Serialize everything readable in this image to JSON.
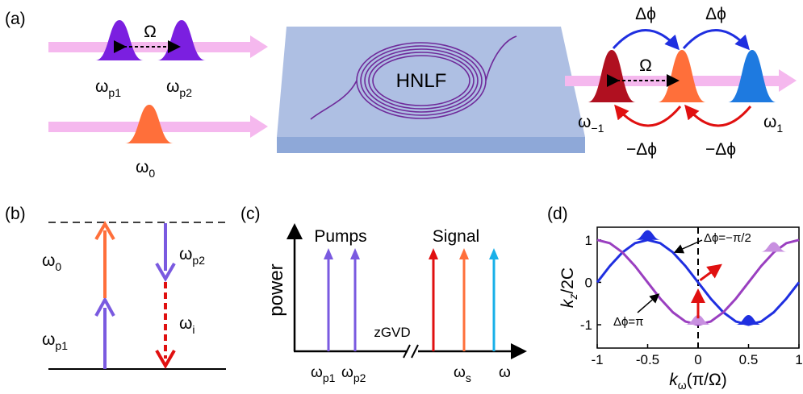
{
  "panel_labels": [
    "(a)",
    "(b)",
    "(c)",
    "(d)"
  ],
  "a": {
    "pump_spacing": "Ω",
    "pump1": {
      "symbol": "ω",
      "sub": "p1"
    },
    "pump2": {
      "symbol": "ω",
      "sub": "p2"
    },
    "signal": {
      "symbol": "ω",
      "sub": "0"
    },
    "chip": "HNLF",
    "mode_spacing": "Ω",
    "phase_up": [
      "Δϕ",
      "Δϕ"
    ],
    "phase_down": [
      "−Δϕ",
      "−Δϕ"
    ],
    "mode_minus": {
      "symbol": "ω",
      "sub": "−1"
    },
    "mode_plus": {
      "symbol": "ω",
      "sub": "1"
    }
  },
  "b": {
    "w0": {
      "symbol": "ω",
      "sub": "0"
    },
    "wp1": {
      "symbol": "ω",
      "sub": "p1"
    },
    "wp2": {
      "symbol": "ω",
      "sub": "p2"
    },
    "wi": {
      "symbol": "ω",
      "sub": "i"
    }
  },
  "c": {
    "pumps": "Pumps",
    "signal": "Signal",
    "y_label": "power",
    "break_label": "zGVD",
    "wp1": {
      "symbol": "ω",
      "sub": "p1"
    },
    "wp2": {
      "symbol": "ω",
      "sub": "p2"
    },
    "ws": {
      "symbol": "ω",
      "sub": "s"
    },
    "w": "ω"
  },
  "chart_data": {
    "type": "line",
    "x": [
      -1,
      -0.875,
      -0.75,
      -0.625,
      -0.5,
      -0.375,
      -0.25,
      -0.125,
      0,
      0.125,
      0.25,
      0.375,
      0.5,
      0.625,
      0.75,
      0.875,
      1
    ],
    "series": [
      {
        "name": "Δϕ=−π/2",
        "color": "#1f2fe0",
        "values": [
          0,
          0.383,
          0.707,
          0.924,
          1,
          0.924,
          0.707,
          0.383,
          0,
          -0.383,
          -0.707,
          -0.924,
          -1,
          -0.924,
          -0.707,
          -0.383,
          0
        ]
      },
      {
        "name": "Δϕ=π",
        "color": "#9a3fc0",
        "values": [
          1,
          0.924,
          0.707,
          0.383,
          0,
          -0.383,
          -0.707,
          -0.924,
          -1,
          -0.924,
          -0.707,
          -0.383,
          0,
          0.383,
          0.707,
          0.924,
          1
        ]
      }
    ],
    "xlim": [
      -1,
      1
    ],
    "ylim": [
      -1.55,
      1.3
    ],
    "xticks": [
      -1,
      -0.5,
      0,
      0.5,
      1
    ],
    "yticks": [
      -1,
      0,
      1
    ],
    "y_label": {
      "main": "k",
      "sub": "z",
      "rest": "/2C"
    },
    "x_label": {
      "main": "k",
      "sub": "ω",
      "rest": "(π/Ω)"
    }
  }
}
